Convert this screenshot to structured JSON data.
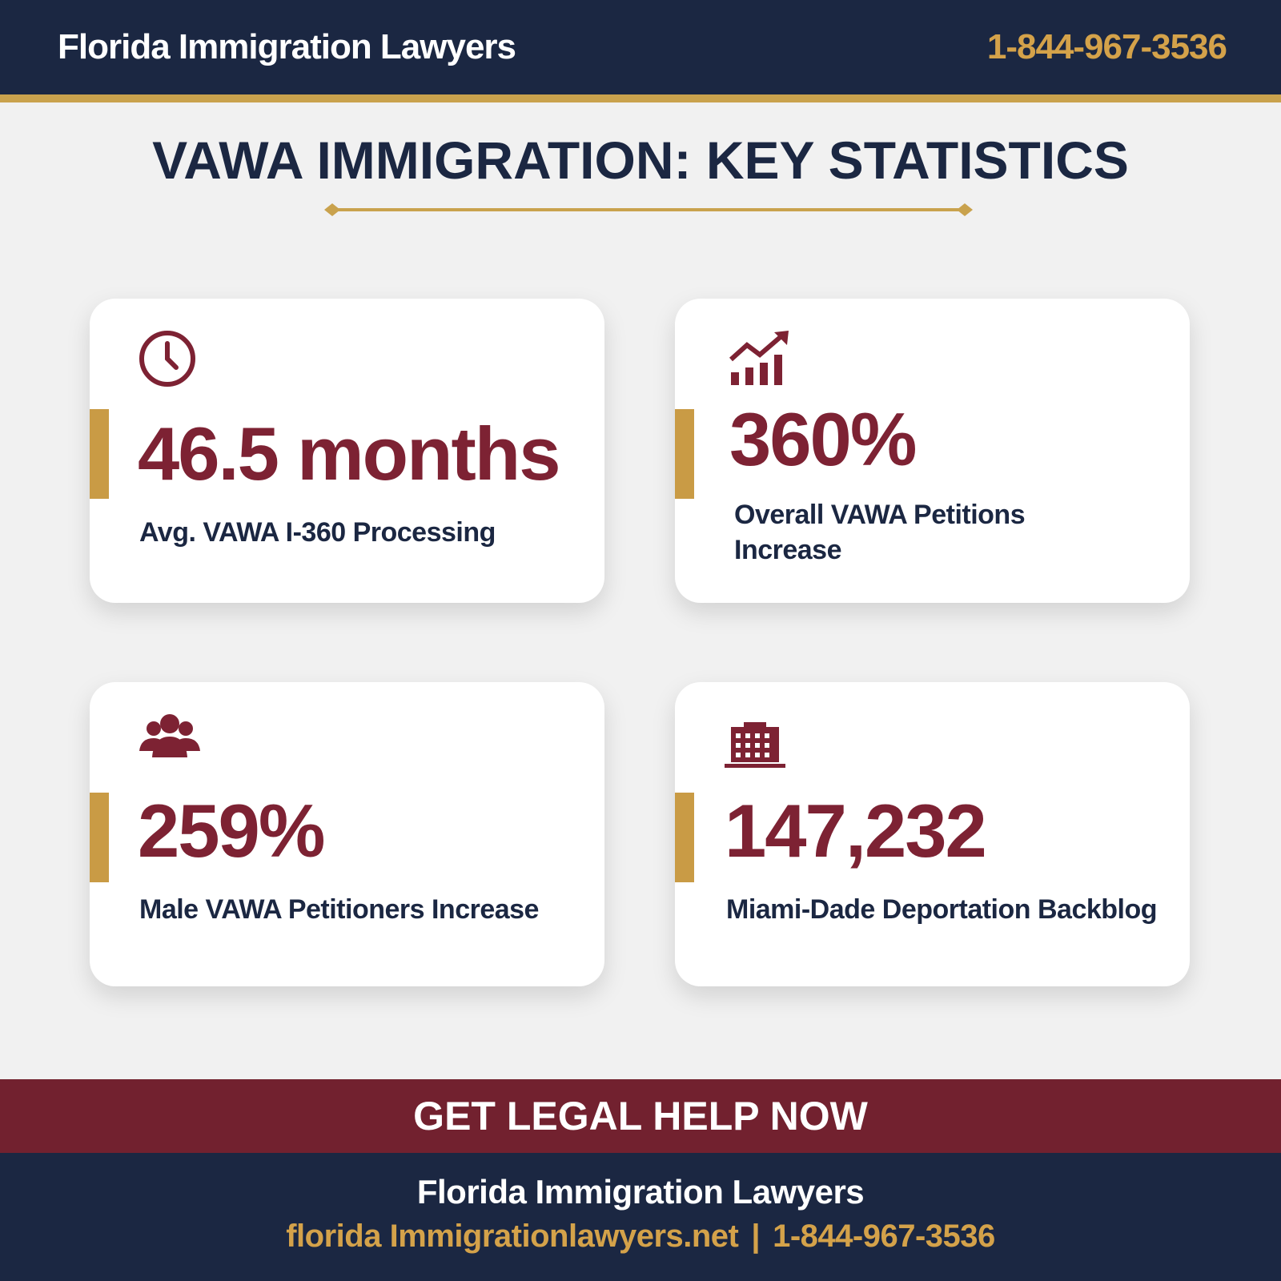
{
  "header": {
    "title": "Florida Immigration Lawyers",
    "phone": "1-844-967-3536"
  },
  "main": {
    "title": "VAWA IMMIGRATION: KEY STATISTICS"
  },
  "cards": [
    {
      "value": "46.5 months",
      "label": "Avg. VAWA I-360 Processing"
    },
    {
      "value": "360%",
      "label": "Overall VAWA Petitions Increase"
    },
    {
      "value": "259%",
      "label": "Male VAWA Petitioners Increase"
    },
    {
      "value": "147,232",
      "label": "Miami-Dade Deportation Backblog"
    }
  ],
  "cta": {
    "text": "GET LEGAL HELP NOW"
  },
  "footer": {
    "title": "Florida Immigration Lawyers",
    "website": "florida Immigrationlawyers.net",
    "separator": "|",
    "phone": "1-844-967-3536"
  }
}
